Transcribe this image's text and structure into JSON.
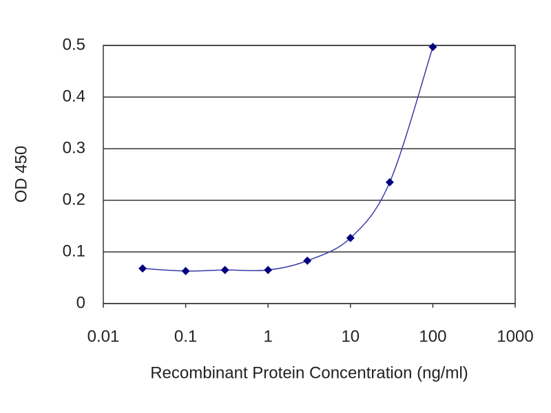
{
  "chart_data": {
    "type": "scatter",
    "xlabel": "Recombinant Protein Concentration (ng/ml)",
    "ylabel": "OD 450",
    "x": [
      0.03,
      0.1,
      0.3,
      1,
      3,
      10,
      30,
      100
    ],
    "values": [
      0.068,
      0.063,
      0.065,
      0.065,
      0.083,
      0.127,
      0.235,
      0.497
    ],
    "color": "#000080",
    "line_color": "#3a3aa8",
    "xscale": "log",
    "xlim": [
      0.01,
      1000
    ],
    "xticks": [
      0.01,
      0.1,
      1,
      10,
      100,
      1000
    ],
    "ylim": [
      0,
      0.5
    ],
    "yticks": [
      0,
      0.1,
      0.2,
      0.3,
      0.4,
      0.5
    ],
    "grid": true
  }
}
